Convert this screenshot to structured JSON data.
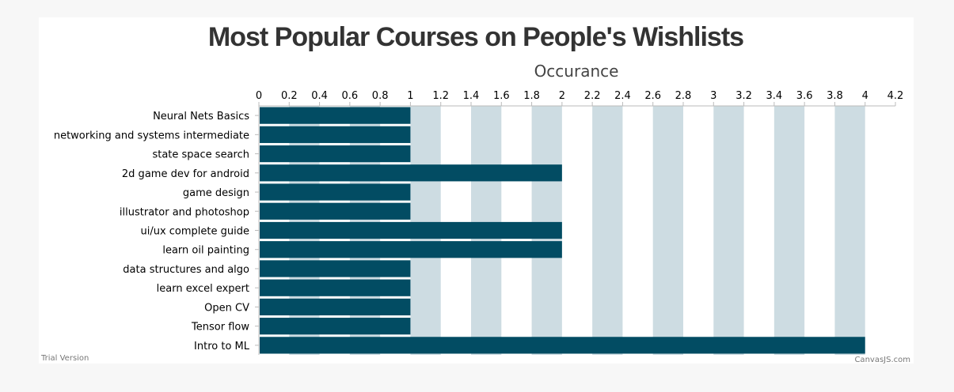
{
  "chart_data": {
    "type": "bar",
    "orientation": "horizontal",
    "title": "Most Popular Courses on People's Wishlists",
    "xlabel": "Occurance",
    "ylabel": "",
    "xlim": [
      0,
      4.2
    ],
    "x_ticks": [
      "0",
      "0.2",
      "0.4",
      "0.6",
      "0.8",
      "1",
      "1.2",
      "1.4",
      "1.6",
      "1.8",
      "2",
      "2.2",
      "2.4",
      "2.6",
      "2.8",
      "3",
      "3.2",
      "3.4",
      "3.6",
      "3.8",
      "4",
      "4.2"
    ],
    "x_axis_position": "top",
    "interlaced_grid": true,
    "categories": [
      "Neural Nets Basics",
      "networking and systems intermediate",
      "state space search",
      "2d game dev for android",
      "game design",
      "illustrator and photoshop",
      "ui/ux complete guide",
      "learn oil painting",
      "data structures and algo",
      "learn excel expert",
      "Open CV",
      "Tensor flow",
      "Intro to ML"
    ],
    "values": [
      1,
      1,
      1,
      2,
      1,
      1,
      2,
      2,
      1,
      1,
      1,
      1,
      4
    ]
  },
  "colors": {
    "bar": "#024c63",
    "interlace": "#cddce2",
    "panel": "#ffffff",
    "background": "#f7f7f7",
    "title": "#333333"
  },
  "footer": {
    "trial_text": "Trial Version",
    "credit_text": "CanvasJS.com"
  }
}
